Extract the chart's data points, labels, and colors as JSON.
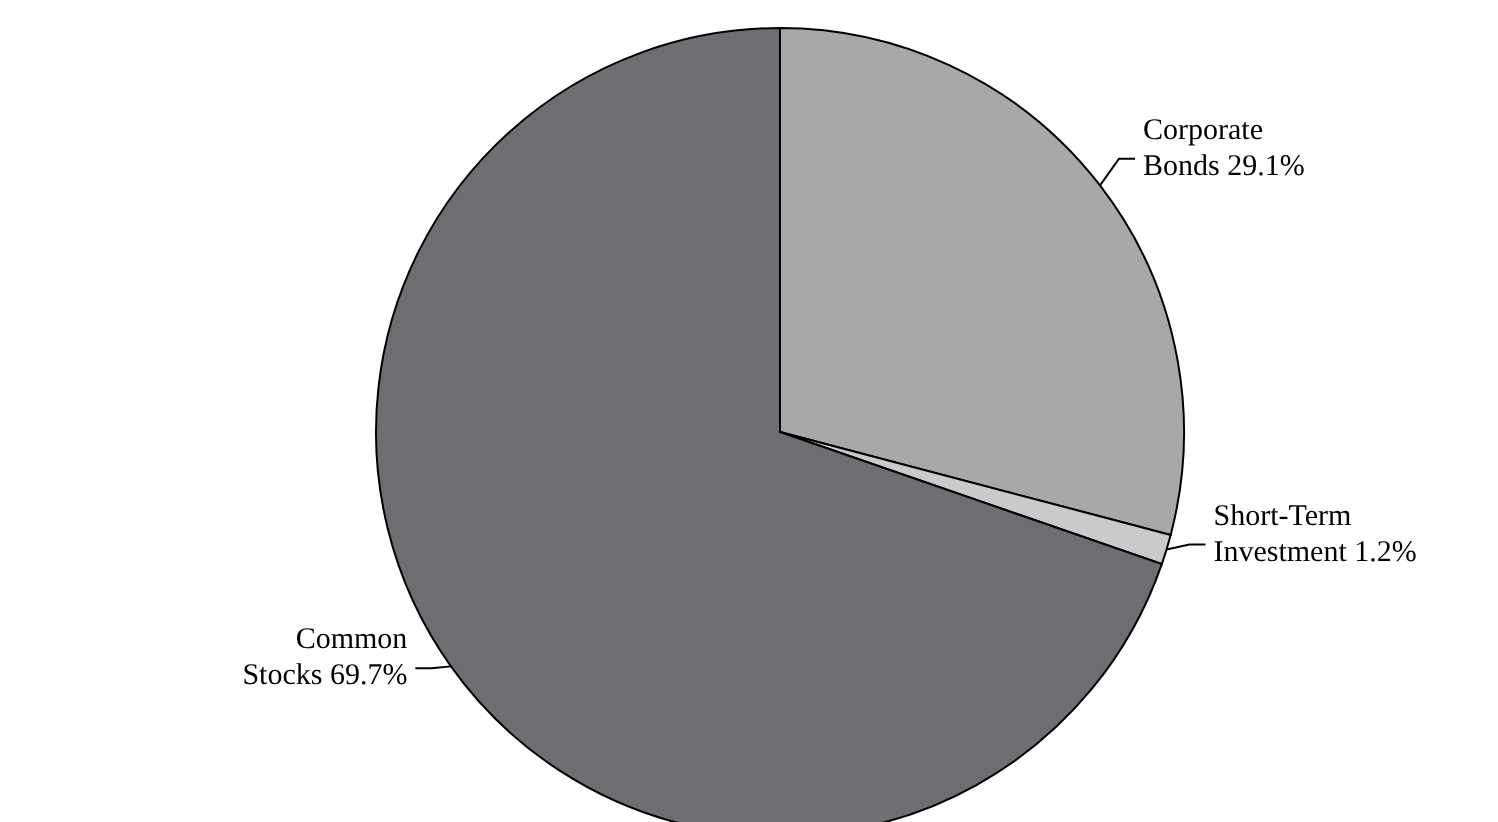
{
  "chart_data": {
    "type": "pie",
    "categories": [
      "Corporate Bonds",
      "Short-Term Investment",
      "Common Stocks"
    ],
    "values": [
      29.1,
      1.2,
      69.7
    ],
    "value_labels": [
      "29.1%",
      "1.2%",
      "69.7%"
    ],
    "colors": [
      "#a7a8aa",
      "#c9cacc",
      "#6d6e71"
    ],
    "legend": false
  }
}
